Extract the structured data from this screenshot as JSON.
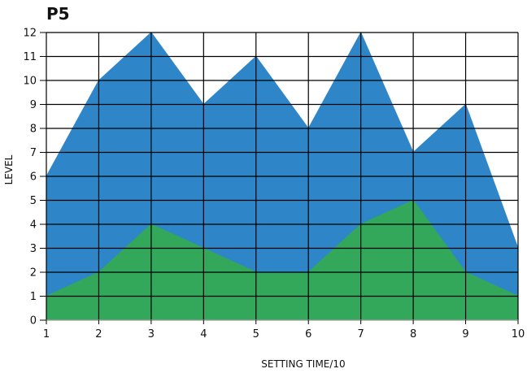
{
  "chart_data": {
    "type": "area",
    "title": "P5",
    "xlabel": "SETTING TIME/10",
    "ylabel": "LEVEL",
    "x": [
      1,
      2,
      3,
      4,
      5,
      6,
      7,
      8,
      9,
      10
    ],
    "xlim": [
      1,
      10
    ],
    "ylim": [
      0,
      12
    ],
    "x_ticks": [
      "1",
      "2",
      "3",
      "4",
      "5",
      "6",
      "7",
      "8",
      "9",
      "10"
    ],
    "y_ticks": [
      "0",
      "1",
      "2",
      "3",
      "4",
      "5",
      "6",
      "7",
      "8",
      "9",
      "10",
      "11",
      "12"
    ],
    "grid": true,
    "legend": "none",
    "stacked": false,
    "series": [
      {
        "color": "#2e86c8",
        "values": [
          6,
          10,
          12,
          9,
          11,
          8,
          12,
          7,
          9,
          3
        ]
      },
      {
        "color": "#33a85a",
        "values": [
          1,
          2,
          4,
          3,
          2,
          2,
          4,
          5,
          2,
          1
        ]
      }
    ]
  }
}
